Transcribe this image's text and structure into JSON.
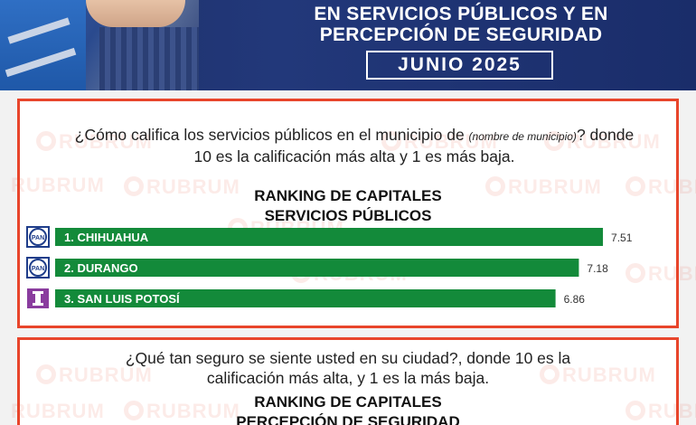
{
  "header": {
    "title_line1": "EN SERVICIOS PÚBLICOS Y EN",
    "title_line2": "PERCEPCIÓN DE SEGURIDAD",
    "date": "JUNIO 2025"
  },
  "watermark": "RUBRUM",
  "panel1": {
    "question_part1": "¿Cómo califica los servicios públicos en el municipio de ",
    "question_note": "(nombre de municipio)",
    "question_part2": "? donde 10 es la calificación más alta y 1 es más baja.",
    "ranking_line1": "RANKING DE CAPITALES",
    "ranking_line2": "SERVICIOS PÚBLICOS"
  },
  "panel2": {
    "question_line1": "¿Qué tan seguro se siente usted en su ciudad?, donde 10 es la",
    "question_line2": "calificación más alta, y  1 es la más baja.",
    "ranking_line1": "RANKING DE CAPITALES",
    "ranking_line2": "PERCEPCIÓN DE SEGURIDAD"
  },
  "colors": {
    "bar": "#138a3a",
    "border": "#e8452b",
    "banner": "#1d2f66",
    "pan_blue": "#1f3d8a",
    "independent_purple": "#8a3c9e"
  },
  "chart_data": {
    "type": "bar",
    "orientation": "horizontal",
    "title": "RANKING DE CAPITALES SERVICIOS PÚBLICOS",
    "categories": [
      "1. CHIHUAHUA",
      "2. DURANGO",
      "3. SAN LUIS POTOSÍ"
    ],
    "values": [
      7.51,
      7.18,
      6.86
    ],
    "value_labels": [
      "7.51",
      "7.18",
      "6.86"
    ],
    "party_icons": [
      "PAN",
      "PAN",
      "I"
    ],
    "grid": false,
    "legend": "none"
  }
}
